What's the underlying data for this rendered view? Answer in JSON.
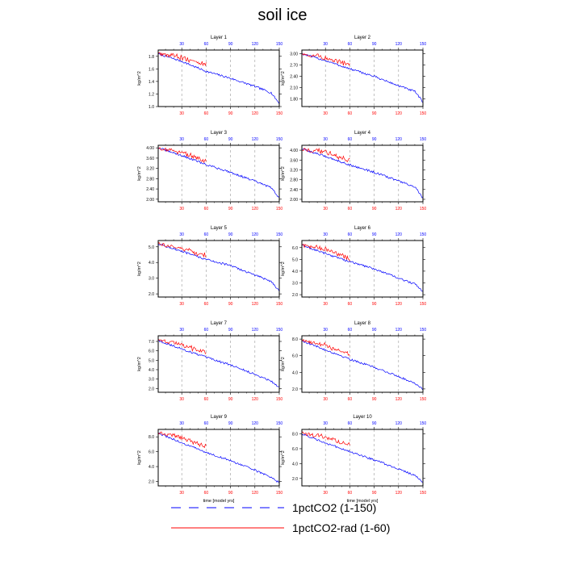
{
  "title": "soil ice",
  "colors": {
    "series_a": "#0000ff",
    "series_b": "#ff0000",
    "grid": "#999999"
  },
  "legend": [
    {
      "label": "1pctCO2 (1-150)",
      "color": "#0000ff",
      "style": "dashed"
    },
    {
      "label": "1pctCO2-rad (1-60)",
      "color": "#ff0000",
      "style": "solid"
    }
  ],
  "chart_data": [
    {
      "type": "line",
      "title": "Layer 1",
      "ylabel": "kg/m^2",
      "xlabel": "",
      "xlim": [
        1,
        150
      ],
      "xticks": [
        30,
        60,
        90,
        120,
        150
      ],
      "ylim": [
        1.0,
        1.9
      ],
      "yticks": [
        1.0,
        1.2,
        1.4,
        1.6,
        1.8
      ],
      "ytick_labels": [
        "1.0",
        "1.2",
        "1.4",
        "1.6",
        "1.8"
      ],
      "grid": "vertical dashed at 30, 60, 90, 120",
      "series": [
        {
          "name": "1pctCO2 (1-150)",
          "color": "#0000ff",
          "range": [
            1,
            150
          ],
          "points": [
            [
              1,
              1.84
            ],
            [
              30,
              1.72
            ],
            [
              60,
              1.56
            ],
            [
              90,
              1.45
            ],
            [
              120,
              1.32
            ],
            [
              140,
              1.22
            ],
            [
              150,
              1.05
            ]
          ]
        },
        {
          "name": "1pctCO2-rad (1-60)",
          "color": "#ff0000",
          "range": [
            1,
            60
          ],
          "points": [
            [
              1,
              1.85
            ],
            [
              30,
              1.77
            ],
            [
              60,
              1.66
            ]
          ]
        }
      ]
    },
    {
      "type": "line",
      "title": "Layer 2",
      "ylabel": "kg/m^2",
      "xlabel": "",
      "xlim": [
        1,
        150
      ],
      "xticks": [
        30,
        60,
        90,
        120,
        150
      ],
      "ylim": [
        1.6,
        3.1
      ],
      "yticks": [
        1.8,
        2.1,
        2.4,
        2.7,
        3.0
      ],
      "ytick_labels": [
        "1.80",
        "2.10",
        "2.40",
        "2.70",
        "3.00"
      ],
      "grid": "vertical dashed at 30, 60, 90, 120",
      "series": [
        {
          "name": "1pctCO2 (1-150)",
          "color": "#0000ff",
          "range": [
            1,
            150
          ],
          "points": [
            [
              1,
              3.0
            ],
            [
              30,
              2.82
            ],
            [
              60,
              2.6
            ],
            [
              90,
              2.4
            ],
            [
              120,
              2.15
            ],
            [
              140,
              2.0
            ],
            [
              150,
              1.72
            ]
          ]
        },
        {
          "name": "1pctCO2-rad (1-60)",
          "color": "#ff0000",
          "range": [
            1,
            60
          ],
          "points": [
            [
              1,
              3.0
            ],
            [
              30,
              2.88
            ],
            [
              60,
              2.7
            ]
          ]
        }
      ]
    },
    {
      "type": "line",
      "title": "Layer 3",
      "ylabel": "kg/m^2",
      "xlabel": "",
      "xlim": [
        1,
        150
      ],
      "xticks": [
        30,
        60,
        90,
        120,
        150
      ],
      "ylim": [
        1.9,
        4.1
      ],
      "yticks": [
        2.0,
        2.4,
        2.8,
        3.2,
        3.6,
        4.0
      ],
      "ytick_labels": [
        "2.00",
        "2.40",
        "2.80",
        "3.20",
        "3.60",
        "4.00"
      ],
      "grid": "vertical dashed at 30, 60, 90, 120",
      "series": [
        {
          "name": "1pctCO2 (1-150)",
          "color": "#0000ff",
          "range": [
            1,
            150
          ],
          "points": [
            [
              1,
              4.0
            ],
            [
              30,
              3.7
            ],
            [
              60,
              3.35
            ],
            [
              90,
              3.05
            ],
            [
              120,
              2.7
            ],
            [
              140,
              2.45
            ],
            [
              150,
              2.05
            ]
          ]
        },
        {
          "name": "1pctCO2-rad (1-60)",
          "color": "#ff0000",
          "range": [
            1,
            60
          ],
          "points": [
            [
              1,
              4.0
            ],
            [
              30,
              3.8
            ],
            [
              60,
              3.45
            ]
          ]
        }
      ]
    },
    {
      "type": "line",
      "title": "Layer 4",
      "ylabel": "kg/m^2",
      "xlabel": "",
      "xlim": [
        1,
        150
      ],
      "xticks": [
        30,
        60,
        90,
        120,
        150
      ],
      "ylim": [
        1.9,
        4.2
      ],
      "yticks": [
        2.0,
        2.4,
        2.8,
        3.2,
        3.6,
        4.0
      ],
      "ytick_labels": [
        "2.00",
        "2.40",
        "2.80",
        "3.20",
        "3.60",
        "4.00"
      ],
      "grid": "vertical dashed at 30, 60, 90, 120",
      "series": [
        {
          "name": "1pctCO2 (1-150)",
          "color": "#0000ff",
          "range": [
            1,
            150
          ],
          "points": [
            [
              1,
              4.05
            ],
            [
              30,
              3.75
            ],
            [
              60,
              3.4
            ],
            [
              90,
              3.1
            ],
            [
              120,
              2.75
            ],
            [
              140,
              2.5
            ],
            [
              150,
              2.05
            ]
          ]
        },
        {
          "name": "1pctCO2-rad (1-60)",
          "color": "#ff0000",
          "range": [
            1,
            60
          ],
          "points": [
            [
              1,
              4.05
            ],
            [
              30,
              3.9
            ],
            [
              60,
              3.55
            ]
          ]
        }
      ]
    },
    {
      "type": "line",
      "title": "Layer 5",
      "ylabel": "kg/m^2",
      "xlabel": "",
      "xlim": [
        1,
        150
      ],
      "xticks": [
        30,
        60,
        90,
        120,
        150
      ],
      "ylim": [
        1.8,
        5.4
      ],
      "yticks": [
        2.0,
        3.0,
        4.0,
        5.0
      ],
      "ytick_labels": [
        "2.0",
        "3.0",
        "4.0",
        "5.0"
      ],
      "grid": "vertical dashed at 30, 60, 90, 120",
      "series": [
        {
          "name": "1pctCO2 (1-150)",
          "color": "#0000ff",
          "range": [
            1,
            150
          ],
          "points": [
            [
              1,
              5.2
            ],
            [
              30,
              4.7
            ],
            [
              60,
              4.2
            ],
            [
              90,
              3.8
            ],
            [
              120,
              3.2
            ],
            [
              140,
              2.8
            ],
            [
              150,
              2.2
            ]
          ]
        },
        {
          "name": "1pctCO2-rad (1-60)",
          "color": "#ff0000",
          "range": [
            1,
            60
          ],
          "points": [
            [
              1,
              5.2
            ],
            [
              30,
              4.85
            ],
            [
              60,
              4.4
            ]
          ]
        }
      ]
    },
    {
      "type": "line",
      "title": "Layer 6",
      "ylabel": "kg/m^2",
      "xlabel": "",
      "xlim": [
        1,
        150
      ],
      "xticks": [
        30,
        60,
        90,
        120,
        150
      ],
      "ylim": [
        1.8,
        6.6
      ],
      "yticks": [
        2.0,
        3.0,
        4.0,
        5.0,
        6.0
      ],
      "ytick_labels": [
        "2.0",
        "3.0",
        "4.0",
        "5.0",
        "6.0"
      ],
      "grid": "vertical dashed at 30, 60, 90, 120",
      "series": [
        {
          "name": "1pctCO2 (1-150)",
          "color": "#0000ff",
          "range": [
            1,
            150
          ],
          "points": [
            [
              1,
              6.2
            ],
            [
              30,
              5.5
            ],
            [
              60,
              4.8
            ],
            [
              90,
              4.2
            ],
            [
              120,
              3.4
            ],
            [
              140,
              2.9
            ],
            [
              150,
              2.3
            ]
          ]
        },
        {
          "name": "1pctCO2-rad (1-60)",
          "color": "#ff0000",
          "range": [
            1,
            60
          ],
          "points": [
            [
              1,
              6.2
            ],
            [
              30,
              5.8
            ],
            [
              60,
              5.0
            ]
          ]
        }
      ]
    },
    {
      "type": "line",
      "title": "Layer 7",
      "ylabel": "kg/m^2",
      "xlabel": "",
      "xlim": [
        1,
        150
      ],
      "xticks": [
        30,
        60,
        90,
        120,
        150
      ],
      "ylim": [
        1.6,
        7.6
      ],
      "yticks": [
        2.0,
        3.0,
        4.0,
        5.0,
        6.0,
        7.0
      ],
      "ytick_labels": [
        "2.0",
        "3.0",
        "4.0",
        "5.0",
        "6.0",
        "7.0"
      ],
      "grid": "vertical dashed at 30, 60, 90, 120",
      "series": [
        {
          "name": "1pctCO2 (1-150)",
          "color": "#0000ff",
          "range": [
            1,
            150
          ],
          "points": [
            [
              1,
              7.1
            ],
            [
              30,
              6.2
            ],
            [
              60,
              5.3
            ],
            [
              90,
              4.5
            ],
            [
              120,
              3.5
            ],
            [
              140,
              2.8
            ],
            [
              150,
              2.1
            ]
          ]
        },
        {
          "name": "1pctCO2-rad (1-60)",
          "color": "#ff0000",
          "range": [
            1,
            60
          ],
          "points": [
            [
              1,
              7.2
            ],
            [
              30,
              6.6
            ],
            [
              60,
              5.7
            ]
          ]
        }
      ]
    },
    {
      "type": "line",
      "title": "Layer 8",
      "ylabel": "kg/m^2",
      "xlabel": "",
      "xlim": [
        1,
        150
      ],
      "xticks": [
        30,
        60,
        90,
        120,
        150
      ],
      "ylim": [
        1.6,
        8.4
      ],
      "yticks": [
        2.0,
        4.0,
        6.0,
        8.0
      ],
      "ytick_labels": [
        "2.0",
        "4.0",
        "6.0",
        "8.0"
      ],
      "grid": "vertical dashed at 30, 60, 90, 120",
      "series": [
        {
          "name": "1pctCO2 (1-150)",
          "color": "#0000ff",
          "range": [
            1,
            150
          ],
          "points": [
            [
              1,
              7.8
            ],
            [
              30,
              6.7
            ],
            [
              60,
              5.6
            ],
            [
              90,
              4.6
            ],
            [
              120,
              3.5
            ],
            [
              140,
              2.7
            ],
            [
              150,
              2.0
            ]
          ]
        },
        {
          "name": "1pctCO2-rad (1-60)",
          "color": "#ff0000",
          "range": [
            1,
            60
          ],
          "points": [
            [
              1,
              7.9
            ],
            [
              30,
              7.2
            ],
            [
              60,
              6.1
            ]
          ]
        }
      ]
    },
    {
      "type": "line",
      "title": "Layer 9",
      "ylabel": "kg/m^2",
      "xlabel": "time [model yrs]",
      "xlim": [
        1,
        150
      ],
      "xticks": [
        30,
        60,
        90,
        120,
        150
      ],
      "ylim": [
        1.4,
        9.0
      ],
      "yticks": [
        2.0,
        4.0,
        6.0,
        8.0
      ],
      "ytick_labels": [
        "2.0",
        "4.0",
        "6.0",
        "8.0"
      ],
      "grid": "vertical dashed at 30, 60, 90, 120",
      "series": [
        {
          "name": "1pctCO2 (1-150)",
          "color": "#0000ff",
          "range": [
            1,
            150
          ],
          "points": [
            [
              1,
              8.5
            ],
            [
              30,
              7.2
            ],
            [
              60,
              5.9
            ],
            [
              90,
              4.8
            ],
            [
              120,
              3.5
            ],
            [
              140,
              2.6
            ],
            [
              150,
              1.8
            ]
          ]
        },
        {
          "name": "1pctCO2-rad (1-60)",
          "color": "#ff0000",
          "range": [
            1,
            60
          ],
          "points": [
            [
              1,
              8.6
            ],
            [
              30,
              7.8
            ],
            [
              60,
              6.6
            ]
          ]
        }
      ]
    },
    {
      "type": "line",
      "title": "Layer 10",
      "ylabel": "kg/m^2",
      "xlabel": "time [model yrs]",
      "xlim": [
        1,
        150
      ],
      "xticks": [
        30,
        60,
        90,
        120,
        150
      ],
      "ylim": [
        1.0,
        8.6
      ],
      "yticks": [
        2.0,
        4.0,
        6.0,
        8.0
      ],
      "ytick_labels": [
        "2.0",
        "4.0",
        "6.0",
        "8.0"
      ],
      "grid": "vertical dashed at 30, 60, 90, 120",
      "series": [
        {
          "name": "1pctCO2 (1-150)",
          "color": "#0000ff",
          "range": [
            1,
            150
          ],
          "points": [
            [
              1,
              8.0
            ],
            [
              30,
              6.8
            ],
            [
              60,
              5.6
            ],
            [
              90,
              4.5
            ],
            [
              120,
              3.3
            ],
            [
              140,
              2.4
            ],
            [
              150,
              1.5
            ]
          ]
        },
        {
          "name": "1pctCO2-rad (1-60)",
          "color": "#ff0000",
          "range": [
            1,
            60
          ],
          "points": [
            [
              1,
              8.1
            ],
            [
              30,
              7.5
            ],
            [
              60,
              6.4
            ]
          ]
        }
      ]
    }
  ]
}
